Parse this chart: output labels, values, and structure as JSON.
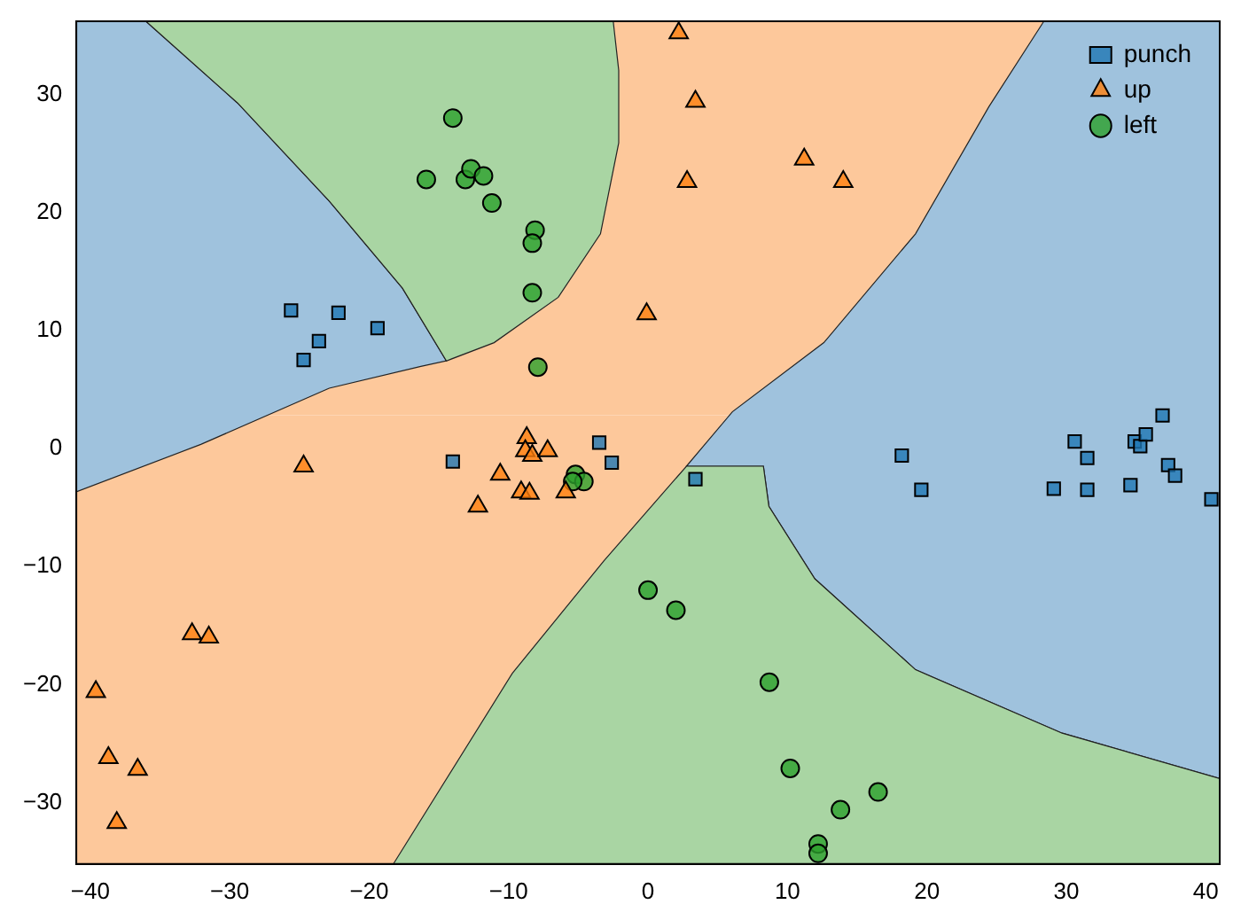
{
  "chart_data": {
    "type": "scatter",
    "xlim": [
      -41,
      41
    ],
    "ylim": [
      -35.2,
      36.2
    ],
    "xticks": [
      -40,
      -30,
      -20,
      -10,
      0,
      10,
      20,
      30,
      40
    ],
    "yticks": [
      -30,
      -20,
      -10,
      0,
      10,
      20,
      30
    ],
    "grid": false,
    "legend": "top right",
    "series": [
      {
        "name": "punch",
        "color": "#1f77b4",
        "marker": "square",
        "x": [
          -25.6,
          -24.7,
          -23.6,
          -22.2,
          -19.4,
          -14.0,
          -3.5,
          -2.6,
          3.4,
          18.2,
          19.6,
          29.1,
          30.6,
          31.5,
          31.5,
          34.6,
          34.9,
          35.3,
          35.7,
          36.9,
          37.3,
          37.8,
          40.4
        ],
        "values": [
          11.7,
          7.5,
          9.1,
          11.5,
          10.2,
          -1.1,
          0.5,
          -1.2,
          -2.6,
          -0.6,
          -3.5,
          -3.4,
          0.6,
          -0.8,
          -3.5,
          -3.1,
          0.6,
          0.2,
          1.2,
          2.8,
          -1.4,
          -2.3,
          -4.3
        ]
      },
      {
        "name": "up",
        "color": "#ff7f0e",
        "marker": "triangle",
        "x": [
          2.2,
          3.4,
          2.8,
          11.2,
          14.0,
          -0.1,
          -24.7,
          -32.7,
          -31.5,
          -39.6,
          -38.7,
          -36.6,
          -38.1,
          -12.2,
          -10.6,
          -9.1,
          -8.7,
          -8.8,
          -8.3,
          -8.5,
          -7.2,
          -5.9
        ],
        "values": [
          35.2,
          29.4,
          22.6,
          24.5,
          22.6,
          11.4,
          -1.5,
          -15.7,
          -16.0,
          -20.6,
          -26.2,
          -27.2,
          -31.7,
          -4.9,
          -2.2,
          -3.7,
          0.9,
          -0.2,
          -0.6,
          -3.8,
          -0.2,
          -3.7
        ]
      },
      {
        "name": "left",
        "color": "#2ca02c",
        "marker": "circle",
        "x": [
          -14.0,
          -15.9,
          -13.1,
          -12.7,
          -11.8,
          -11.2,
          -8.1,
          -8.3,
          -8.3,
          -7.9,
          -5.2,
          -4.6,
          -5.4,
          0.0,
          2.0,
          8.7,
          10.2,
          13.8,
          16.5,
          12.2,
          12.2
        ],
        "values": [
          28.0,
          22.8,
          22.8,
          23.7,
          23.1,
          20.8,
          18.5,
          17.4,
          13.2,
          6.9,
          -2.2,
          -2.8,
          -2.8,
          -12.0,
          -13.7,
          -19.8,
          -27.1,
          -30.6,
          -29.1,
          -33.5,
          -34.3
        ]
      }
    ]
  }
}
